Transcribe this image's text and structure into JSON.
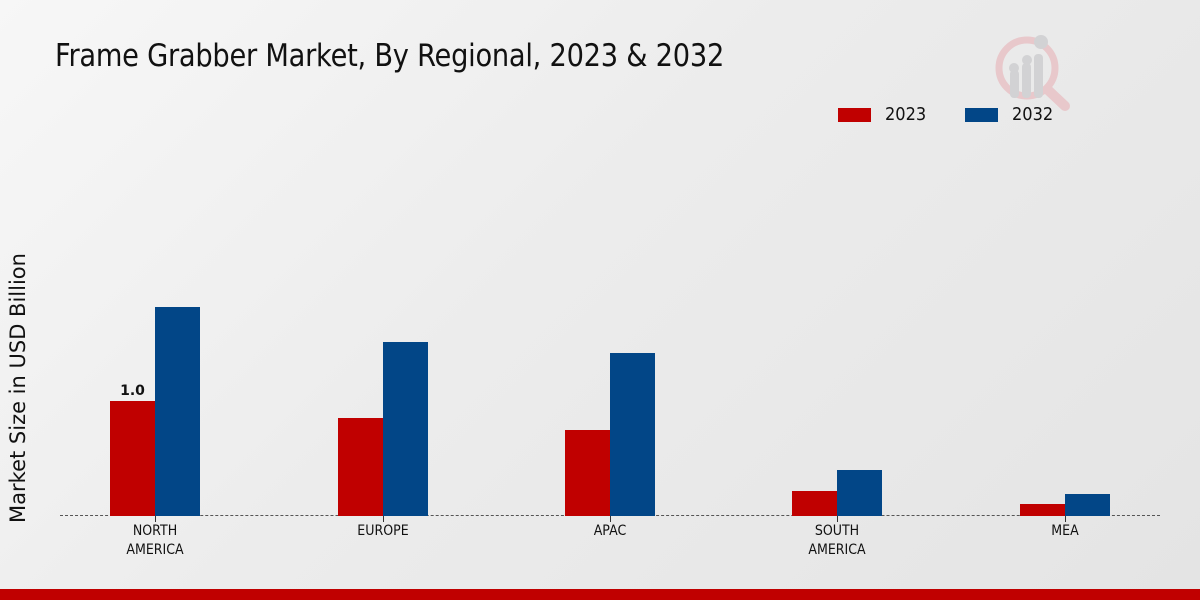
{
  "title": "Frame Grabber Market, By Regional, 2023 & 2032",
  "colors": {
    "series_2023": "#c00000",
    "series_2032": "#024687",
    "footer": "#c00000"
  },
  "legend": [
    {
      "label": "2023",
      "color": "#c00000"
    },
    {
      "label": "2032",
      "color": "#024687"
    }
  ],
  "logo": {
    "icon": "magnifier-bar-chart-icon"
  },
  "chart_data": {
    "type": "bar",
    "title": "Frame Grabber Market, By Regional, 2023 & 2032",
    "xlabel": "",
    "ylabel": "Market Size in USD Billion",
    "categories": [
      "NORTH AMERICA",
      "EUROPE",
      "APAC",
      "SOUTH AMERICA",
      "MEA"
    ],
    "category_lines": [
      [
        "NORTH",
        "AMERICA"
      ],
      [
        "EUROPE"
      ],
      [
        "APAC"
      ],
      [
        "SOUTH",
        "AMERICA"
      ],
      [
        "MEA"
      ]
    ],
    "series": [
      {
        "name": "2023",
        "color": "#c00000",
        "values": [
          1.0,
          0.85,
          0.75,
          0.22,
          0.1
        ]
      },
      {
        "name": "2032",
        "color": "#024687",
        "values": [
          1.82,
          1.51,
          1.42,
          0.4,
          0.19
        ]
      }
    ],
    "annotations": [
      {
        "category": "NORTH AMERICA",
        "series": "2023",
        "text": "1.0"
      }
    ],
    "ylim": [
      0,
      3.18
    ],
    "grid": false,
    "baseline_style": "dashed",
    "legend_position": "top-right"
  }
}
